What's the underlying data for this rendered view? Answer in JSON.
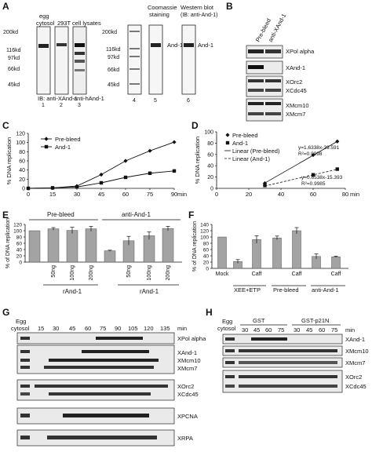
{
  "panel_letters": {
    "A": "A",
    "B": "B",
    "C": "C",
    "D": "D",
    "E": "E",
    "F": "F",
    "G": "G",
    "H": "H"
  },
  "panel_a": {
    "egg": "egg",
    "cytosol": "cytosol",
    "lysates": "293T cell lysates",
    "coomassie_1": "Coomassie",
    "coomassie_2": "staining",
    "western_1": "Western blot",
    "western_2": "(IB: anti-And-1)",
    "ladder_left": [
      "200kd",
      "116kd",
      "97kd",
      "66kd",
      "45kd"
    ],
    "ladder_right": [
      "200kd",
      "116kd",
      "97kd",
      "66kd",
      "45kd"
    ],
    "lane_numbers": [
      "1",
      "2",
      "3",
      "4",
      "5",
      "6"
    ],
    "ib_xand": "IB: anti-XAnd-1",
    "ib_hand": "anti-hAnd-1",
    "and1_label_1": "And-1",
    "and1_label_2": "And-1"
  },
  "panel_b": {
    "col_prebleed": "Pre-bleed",
    "col_anti": "anti-XAnd-1",
    "rows": [
      "XPol alpha",
      "XAnd-1",
      "XOrc2",
      "XCdc45",
      "XMcm10",
      "XMcm7"
    ]
  },
  "panel_e_labels": {
    "prebleed": "Pre-bleed",
    "anti": "anti-And-1",
    "rand1_a": "rAnd-1",
    "rand1_b": "rAnd-1"
  },
  "panel_f_labels": {
    "caff": "Caff",
    "xee_etp": "XEE+ETP",
    "prebleed": "Pre-bleed",
    "anti": "anti-And-1"
  },
  "panel_g": {
    "egg": "Egg",
    "cytosol": "cytosol",
    "times": [
      "15",
      "30",
      "45",
      "60",
      "75",
      "90",
      "105",
      "120",
      "135"
    ],
    "unit": "min",
    "labels": [
      "XPol alpha",
      "XAnd-1",
      "XMcm10",
      "XMcm7",
      "XOrc2",
      "XCdc45",
      "XPCNA",
      "XRPA"
    ]
  },
  "panel_h": {
    "egg": "Egg",
    "cytosol": "cytosol",
    "gst": "GST",
    "gst_p21n": "GST-p21N",
    "times_gst": [
      "30",
      "45",
      "60",
      "75"
    ],
    "times_p21n": [
      "30",
      "45",
      "60",
      "75"
    ],
    "unit": "min",
    "labels": [
      "XAnd-1",
      "XMcm10",
      "XMcm7",
      "XOrc2",
      "XCdc45"
    ]
  },
  "chart_data": [
    {
      "panel": "C",
      "type": "line",
      "x": [
        0,
        15,
        30,
        45,
        60,
        75,
        90
      ],
      "series": [
        {
          "name": "Pre-bleed",
          "values": [
            0,
            1,
            5,
            30,
            60,
            82,
            101
          ]
        },
        {
          "name": "And-1",
          "values": [
            0,
            1,
            3,
            12,
            24,
            33,
            38
          ]
        }
      ],
      "xlabel": "min",
      "ylabel": "% DNA replication",
      "xlim": [
        0,
        90
      ],
      "ylim": [
        0,
        120
      ],
      "xticks": [
        "0",
        "15",
        "30",
        "45",
        "60",
        "75",
        "90"
      ],
      "yticks": [
        "0",
        "20",
        "40",
        "60",
        "80",
        "100",
        "120"
      ],
      "legend": "top-left"
    },
    {
      "panel": "D",
      "type": "scatter",
      "x": [
        30,
        60,
        75
      ],
      "series": [
        {
          "name": "Pre-bleed",
          "values": [
            9,
            59,
            83
          ]
        },
        {
          "name": "And-1",
          "values": [
            5,
            24,
            34
          ]
        }
      ],
      "fit_lines": [
        {
          "name": "Linear (Pre-bleed)",
          "equation": "y=1.6338x-39.591",
          "r2": "R²=0.9998",
          "x_range": [
            30,
            75
          ],
          "slope": 1.6338,
          "intercept": -39.591
        },
        {
          "name": "Linear (And-1)",
          "equation": "y=0.6538x-15.393",
          "r2": "R²=0.9985",
          "x_range": [
            30,
            75
          ],
          "slope": 0.6538,
          "intercept": -15.393
        }
      ],
      "xlabel": "min",
      "ylabel": "% DNA replication",
      "xlim": [
        0,
        80
      ],
      "ylim": [
        0,
        100
      ],
      "xticks": [
        "0",
        "20",
        "40",
        "60",
        "80"
      ],
      "yticks": [
        "0",
        "20",
        "40",
        "60",
        "80",
        "100"
      ],
      "legend": "top-left"
    },
    {
      "panel": "E",
      "type": "bar",
      "categories": [
        "",
        "50ng",
        "100ng",
        "200ng",
        "",
        "50ng",
        "100ng",
        "200ng"
      ],
      "values": [
        100,
        106,
        101,
        106,
        36,
        68,
        84,
        107
      ],
      "errors": [
        0,
        4,
        10,
        8,
        2,
        14,
        12,
        7
      ],
      "ylabel": "% of DNA replication",
      "ylim": [
        0,
        120
      ],
      "yticks": [
        "0",
        "20",
        "40",
        "60",
        "80",
        "100",
        "120"
      ]
    },
    {
      "panel": "F",
      "type": "bar",
      "categories": [
        "Mock",
        "",
        "Caff",
        "",
        "Caff",
        "",
        "Caff"
      ],
      "values": [
        100,
        22,
        92,
        97,
        120,
        38,
        37
      ],
      "errors": [
        0,
        6,
        12,
        6,
        10,
        8,
        2
      ],
      "ylabel": "% of DNA replication",
      "ylim": [
        0,
        140
      ],
      "yticks": [
        "0",
        "20",
        "40",
        "60",
        "80",
        "100",
        "120",
        "140"
      ]
    }
  ]
}
